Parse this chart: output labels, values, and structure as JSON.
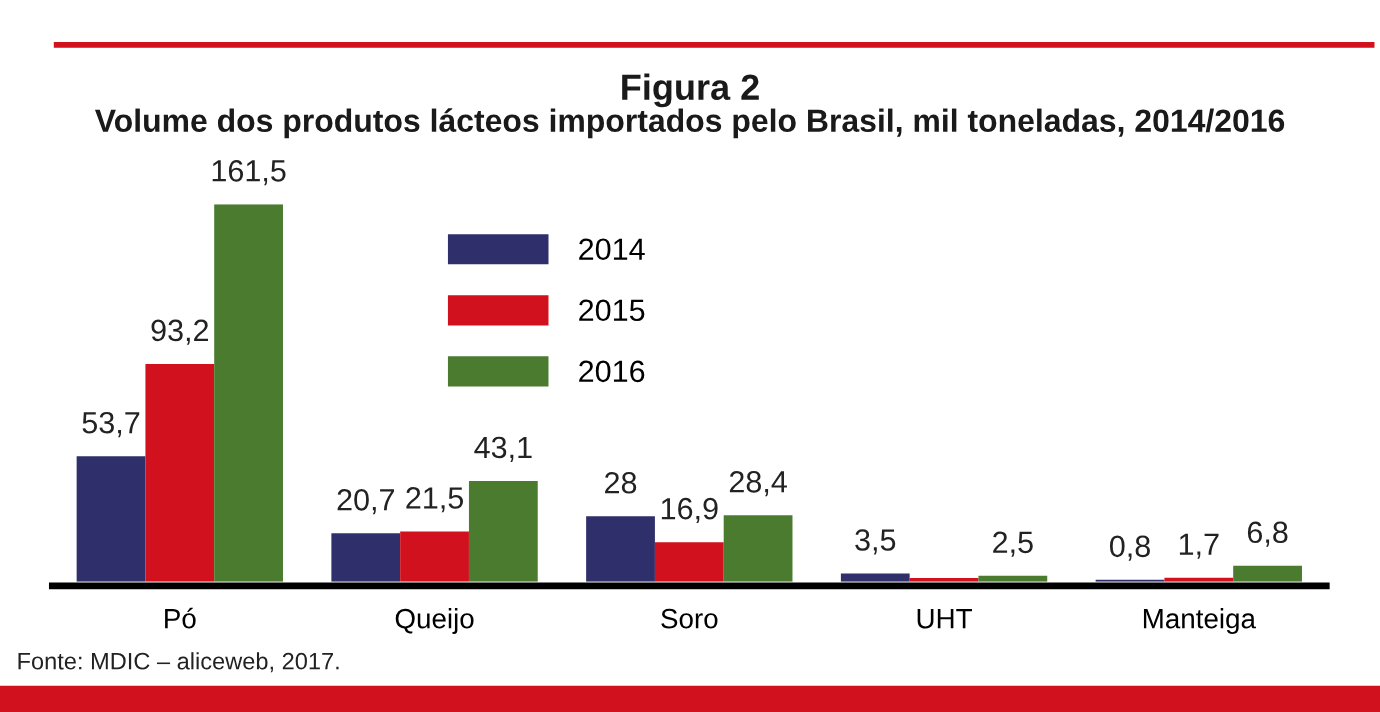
{
  "chart_data": {
    "type": "bar",
    "title": "Figura 2",
    "subtitle": "Volume dos produtos lácteos importados pelo Brasil, mil toneladas, 2014/2016",
    "categories": [
      "Pó",
      "Queijo",
      "Soro",
      "UHT",
      "Manteiga"
    ],
    "series": [
      {
        "name": "2014",
        "color": "#2f2f6b",
        "values": [
          53.7,
          20.7,
          28,
          3.5,
          0.8
        ],
        "value_labels": [
          "53,7",
          "20,7",
          "28",
          "3,5",
          "0,8"
        ]
      },
      {
        "name": "2015",
        "color": "#d1111e",
        "values": [
          93.2,
          21.5,
          16.9,
          1.6,
          1.7
        ],
        "value_labels": [
          "93,2",
          "21,5",
          "16,9",
          null,
          "1,7"
        ]
      },
      {
        "name": "2016",
        "color": "#4b7b2f",
        "values": [
          161.5,
          43.1,
          28.4,
          2.5,
          6.8
        ],
        "value_labels": [
          "161,5",
          "43,1",
          "28,4",
          "2,5",
          "6,8"
        ]
      }
    ],
    "tick_labels": "x",
    "legend": "top",
    "grid": false,
    "annotations": [
      "Fonte: MDIC – aliceweb, 2017."
    ]
  }
}
